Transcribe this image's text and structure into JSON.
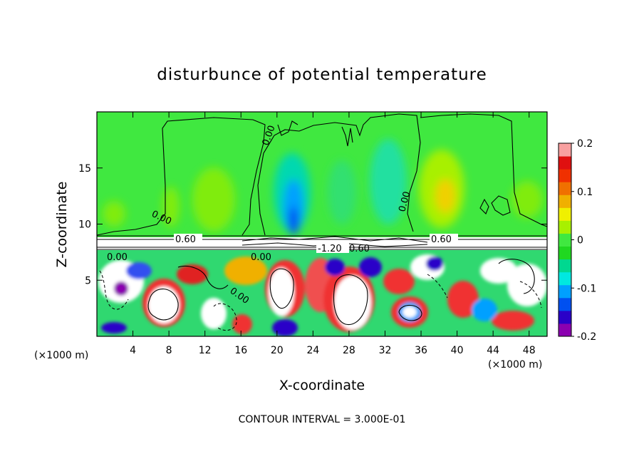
{
  "chart_data": {
    "type": "heatmap",
    "title": "disturbunce of potential temperature",
    "xlabel": "X-coordinate",
    "ylabel": "Z-coordinate",
    "x_unit": "(×1000 m)",
    "y_unit": "(×1000 m)",
    "xlim": [
      0,
      50
    ],
    "ylim": [
      0,
      20
    ],
    "x_ticks": [
      4,
      8,
      12,
      16,
      20,
      24,
      28,
      32,
      36,
      40,
      44,
      48
    ],
    "y_ticks": [
      5,
      10,
      15
    ],
    "colorbar": {
      "range": [
        -0.2,
        0.2
      ],
      "tick_values": [
        0.2,
        0.1,
        0,
        -0.1,
        -0.2
      ],
      "tick_labels": [
        "0.2",
        "0.1",
        "0",
        "-0.1",
        "-0.2"
      ],
      "colors": [
        "#8B00B0",
        "#2A00C8",
        "#0050F0",
        "#00A0FF",
        "#00E8E0",
        "#00D890",
        "#20D820",
        "#40E840",
        "#A8F000",
        "#F0F000",
        "#F0B000",
        "#F07000",
        "#F03000",
        "#E01010",
        "#F8A0A0"
      ]
    },
    "contour_labels": [
      "0.00",
      "0.00",
      "0.00",
      "0.00",
      "0.60",
      "0.60",
      "-1.20",
      "0.60",
      "0.00",
      "0.00"
    ],
    "footer": "CONTOUR INTERVAL = 3.000E-01"
  }
}
